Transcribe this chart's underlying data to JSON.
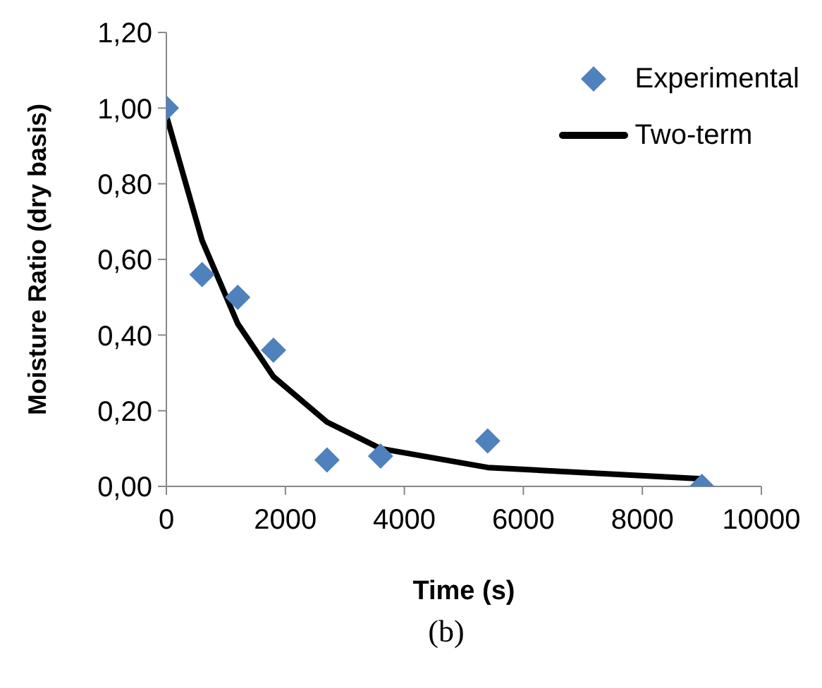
{
  "chart_data": {
    "type": "scatter",
    "xlabel": "Time (s)",
    "ylabel": "Moisture Ratio (dry basis)",
    "xlim": [
      0,
      10000
    ],
    "xticks": [
      0,
      2000,
      4000,
      6000,
      8000,
      10000
    ],
    "ylim": [
      0,
      1.2
    ],
    "yticks": [
      {
        "value": 0,
        "label": "0,00"
      },
      {
        "value": 0.2,
        "label": "0,20"
      },
      {
        "value": 0.4,
        "label": "0,40"
      },
      {
        "value": 0.6,
        "label": "0,60"
      },
      {
        "value": 0.8,
        "label": "0,80"
      },
      {
        "value": 1,
        "label": "1,00"
      },
      {
        "value": 1.2,
        "label": "1,20"
      }
    ],
    "legend": "top right",
    "series": [
      {
        "name": "Experimental",
        "marker": "diamond",
        "color": "#4f81bd",
        "x": [
          0,
          600,
          1200,
          1800,
          2700,
          3600,
          5400,
          9000
        ],
        "values": [
          1.0,
          0.56,
          0.5,
          0.36,
          0.07,
          0.08,
          0.12,
          0.0
        ]
      },
      {
        "name": "Two-term",
        "type": "line",
        "marker": "none",
        "line_style": "solid",
        "color": "#000000",
        "x": [
          0,
          600,
          1200,
          1800,
          2700,
          3600,
          5400,
          9000
        ],
        "values": [
          0.98,
          0.65,
          0.43,
          0.29,
          0.17,
          0.1,
          0.05,
          0.02
        ]
      }
    ],
    "annotations": [
      "(b)"
    ]
  }
}
